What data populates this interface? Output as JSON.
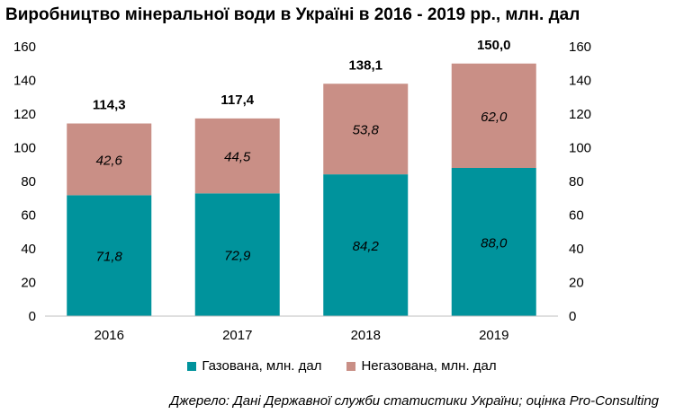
{
  "chart_data": {
    "type": "bar",
    "stacked": true,
    "title": "Виробництво мінеральної води в Україні в 2016 - 2019 рр., млн. дал",
    "categories": [
      "2016",
      "2017",
      "2018",
      "2019"
    ],
    "series": [
      {
        "name": "Газована, млн. дал",
        "color": "#00939c",
        "values": [
          71.8,
          72.9,
          84.2,
          88.0
        ],
        "labels": [
          "71,8",
          "72,9",
          "84,2",
          "88,0"
        ]
      },
      {
        "name": "Негазована, млн. дал",
        "color": "#c98f86",
        "values": [
          42.6,
          44.5,
          53.8,
          62.0
        ],
        "labels": [
          "42,6",
          "44,5",
          "53,8",
          "62,0"
        ]
      }
    ],
    "totals": [
      "114,3",
      "117,4",
      "138,1",
      "150,0"
    ],
    "ylim": [
      0,
      160
    ],
    "yticks": [
      "0",
      "20",
      "40",
      "60",
      "80",
      "100",
      "120",
      "140",
      "160"
    ],
    "secondary_yticks": [
      "0",
      "20",
      "40",
      "60",
      "80",
      "100",
      "120",
      "140",
      "160"
    ],
    "grid": false,
    "legend_position": "bottom"
  },
  "source": "Джерело: Дані Державної служби статистики України; оцінка Pro-Consulting"
}
